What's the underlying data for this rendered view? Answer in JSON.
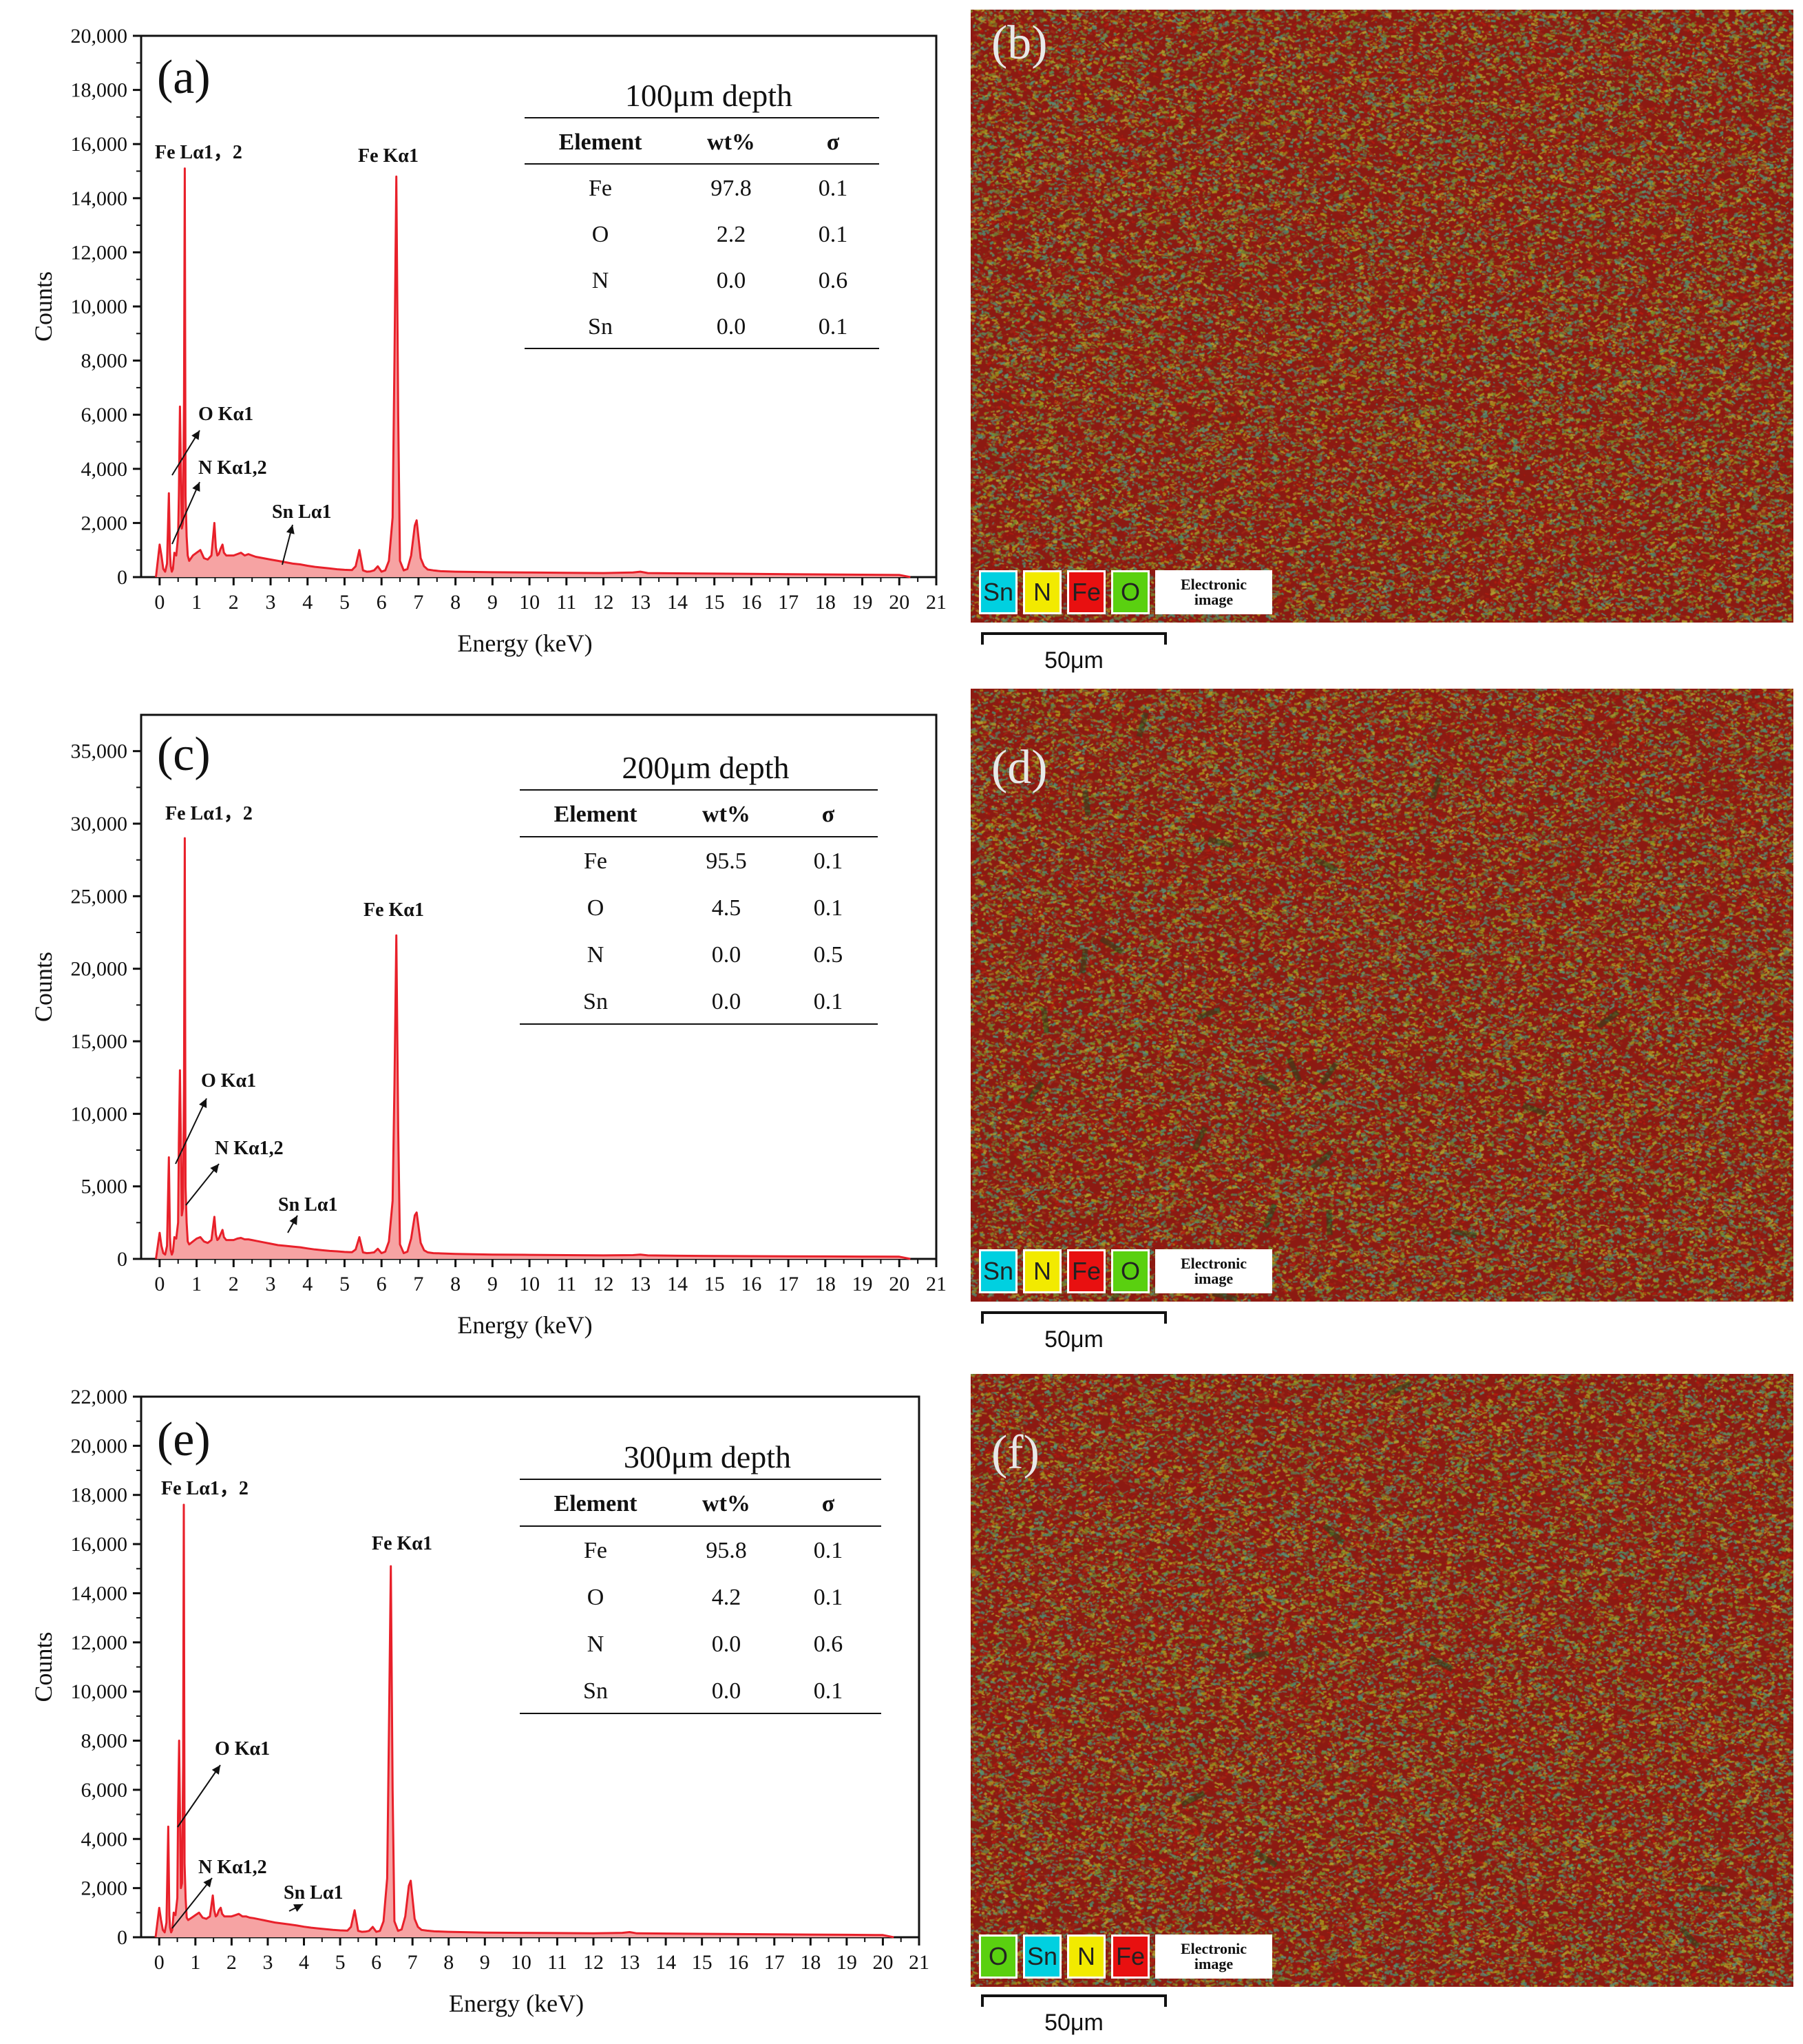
{
  "chart_data": [
    {
      "panel": "(a)",
      "type": "area",
      "xlabel": "Energy (keV)",
      "ylabel": "Counts",
      "xlim": [
        -0.5,
        21
      ],
      "ylim": [
        0,
        20000
      ],
      "xticks": [
        0,
        1,
        2,
        3,
        4,
        5,
        6,
        7,
        8,
        9,
        10,
        11,
        12,
        13,
        14,
        15,
        16,
        17,
        18,
        19,
        20,
        21
      ],
      "yticks": [
        0,
        2000,
        4000,
        6000,
        8000,
        10000,
        12000,
        14000,
        16000,
        18000,
        20000
      ],
      "ytick_labels": [
        "0",
        "2,000",
        "4,000",
        "6,000",
        "8,000",
        "10,000",
        "12,000",
        "14,000",
        "16,000",
        "18,000",
        "20,000"
      ],
      "series": [
        {
          "x": [
            -0.1,
            0.0,
            0.05,
            0.1,
            0.15,
            0.2,
            0.25,
            0.28,
            0.3,
            0.33,
            0.36,
            0.4,
            0.45,
            0.5,
            0.52,
            0.55,
            0.6,
            0.63,
            0.66,
            0.68,
            0.7,
            0.73,
            0.76,
            0.8,
            0.9,
            1.0,
            1.1,
            1.2,
            1.3,
            1.4,
            1.48,
            1.52,
            1.56,
            1.6,
            1.65,
            1.7,
            1.74,
            1.8,
            1.9,
            2.0,
            2.1,
            2.2,
            2.3,
            2.4,
            2.5,
            2.6,
            2.8,
            3.0,
            3.2,
            3.4,
            3.6,
            3.8,
            4.0,
            4.2,
            4.4,
            4.6,
            4.8,
            5.0,
            5.2,
            5.3,
            5.4,
            5.5,
            5.6,
            5.7,
            5.8,
            5.9,
            6.0,
            6.1,
            6.2,
            6.3,
            6.35,
            6.4,
            6.45,
            6.5,
            6.6,
            6.7,
            6.8,
            6.9,
            6.95,
            7.06,
            7.15,
            7.25,
            7.4,
            7.6,
            8.0,
            9.0,
            10.0,
            11.0,
            12.0,
            12.8,
            13.0,
            13.2,
            14.0,
            15.0,
            16.0,
            17.0,
            18.0,
            19.0,
            20.0,
            20.3
          ],
          "y": [
            0,
            1200,
            800,
            300,
            200,
            500,
            3100,
            900,
            400,
            200,
            300,
            900,
            800,
            1500,
            3000,
            6300,
            1800,
            2000,
            6500,
            15100,
            3000,
            1500,
            800,
            600,
            800,
            900,
            1000,
            700,
            650,
            800,
            2000,
            1100,
            800,
            850,
            1050,
            1200,
            900,
            800,
            800,
            800,
            850,
            900,
            800,
            850,
            800,
            750,
            700,
            650,
            600,
            550,
            500,
            470,
            420,
            380,
            350,
            320,
            290,
            270,
            260,
            400,
            1000,
            250,
            200,
            210,
            250,
            400,
            200,
            250,
            600,
            2200,
            8000,
            14800,
            6000,
            600,
            250,
            300,
            800,
            1900,
            2100,
            700,
            400,
            280,
            250,
            220,
            200,
            180,
            170,
            160,
            150,
            170,
            200,
            150,
            140,
            130,
            120,
            110,
            100,
            90,
            80,
            0
          ]
        }
      ],
      "annotations": [
        "Fe Lα1，2",
        "Fe Kα1",
        "O Kα1",
        "N Kα1,2",
        "Sn Lα1"
      ],
      "table": {
        "title": "100μm depth",
        "columns": [
          "Element",
          "wt%",
          "σ"
        ],
        "rows": [
          [
            "Fe",
            "97.8",
            "0.1"
          ],
          [
            "O",
            "2.2",
            "0.1"
          ],
          [
            "N",
            "0.0",
            "0.6"
          ],
          [
            "Sn",
            "0.0",
            "0.1"
          ]
        ]
      }
    },
    {
      "panel": "(c)",
      "type": "area",
      "xlabel": "Energy (keV)",
      "ylabel": "Counts",
      "xlim": [
        -0.5,
        21
      ],
      "ylim": [
        0,
        37500
      ],
      "xticks": [
        0,
        1,
        2,
        3,
        4,
        5,
        6,
        7,
        8,
        9,
        10,
        11,
        12,
        13,
        14,
        15,
        16,
        17,
        18,
        19,
        20,
        21
      ],
      "yticks": [
        0,
        5000,
        10000,
        15000,
        20000,
        25000,
        30000,
        35000
      ],
      "ytick_labels": [
        "0",
        "5,000",
        "10,000",
        "15,000",
        "20,000",
        "25,000",
        "30,000",
        "35,000"
      ],
      "series": [
        {
          "x": [
            -0.1,
            0.0,
            0.05,
            0.1,
            0.15,
            0.2,
            0.25,
            0.28,
            0.3,
            0.33,
            0.36,
            0.4,
            0.45,
            0.5,
            0.52,
            0.55,
            0.6,
            0.63,
            0.66,
            0.68,
            0.7,
            0.73,
            0.76,
            0.8,
            0.9,
            1.0,
            1.1,
            1.2,
            1.3,
            1.4,
            1.48,
            1.52,
            1.56,
            1.6,
            1.65,
            1.7,
            1.74,
            1.8,
            1.9,
            2.0,
            2.1,
            2.2,
            2.3,
            2.4,
            2.5,
            2.6,
            2.8,
            3.0,
            3.2,
            3.4,
            3.6,
            3.8,
            4.0,
            4.2,
            4.4,
            4.6,
            4.8,
            5.0,
            5.2,
            5.3,
            5.4,
            5.5,
            5.6,
            5.7,
            5.8,
            5.9,
            6.0,
            6.1,
            6.2,
            6.3,
            6.35,
            6.4,
            6.45,
            6.5,
            6.6,
            6.7,
            6.8,
            6.9,
            6.95,
            7.06,
            7.15,
            7.25,
            7.4,
            7.6,
            8.0,
            9.0,
            10.0,
            11.0,
            12.0,
            12.8,
            13.0,
            13.2,
            14.0,
            15.0,
            16.0,
            17.0,
            18.0,
            19.0,
            20.0,
            20.3
          ],
          "y": [
            0,
            1800,
            900,
            400,
            300,
            900,
            7000,
            1500,
            600,
            300,
            500,
            1500,
            1400,
            2500,
            8000,
            13000,
            3000,
            3500,
            12000,
            29000,
            5000,
            2500,
            1200,
            1000,
            1200,
            1400,
            1500,
            1200,
            1100,
            1300,
            2900,
            1700,
            1300,
            1400,
            1700,
            2000,
            1500,
            1300,
            1300,
            1300,
            1400,
            1450,
            1350,
            1350,
            1300,
            1250,
            1150,
            1050,
            950,
            900,
            850,
            800,
            720,
            650,
            600,
            550,
            520,
            480,
            460,
            650,
            1500,
            450,
            400,
            420,
            450,
            700,
            400,
            500,
            1200,
            4000,
            12000,
            22300,
            9000,
            1000,
            400,
            500,
            1400,
            3000,
            3200,
            1100,
            600,
            450,
            400,
            380,
            340,
            300,
            280,
            260,
            240,
            260,
            300,
            240,
            220,
            200,
            190,
            180,
            170,
            160,
            150,
            0
          ]
        }
      ],
      "annotations": [
        "Fe Lα1，2",
        "Fe Kα1",
        "O Kα1",
        "N Kα1,2",
        "Sn Lα1"
      ],
      "table": {
        "title": "200μm depth",
        "columns": [
          "Element",
          "wt%",
          "σ"
        ],
        "rows": [
          [
            "Fe",
            "95.5",
            "0.1"
          ],
          [
            "O",
            "4.5",
            "0.1"
          ],
          [
            "N",
            "0.0",
            "0.5"
          ],
          [
            "Sn",
            "0.0",
            "0.1"
          ]
        ]
      }
    },
    {
      "panel": "(e)",
      "type": "area",
      "xlabel": "Energy (keV)",
      "ylabel": "Counts",
      "xlim": [
        -0.5,
        21
      ],
      "ylim": [
        0,
        22000
      ],
      "xticks": [
        0,
        1,
        2,
        3,
        4,
        5,
        6,
        7,
        8,
        9,
        10,
        11,
        12,
        13,
        14,
        15,
        16,
        17,
        18,
        19,
        20,
        21
      ],
      "yticks": [
        0,
        2000,
        4000,
        6000,
        8000,
        10000,
        12000,
        14000,
        16000,
        18000,
        20000,
        22000
      ],
      "ytick_labels": [
        "0",
        "2,000",
        "4,000",
        "6,000",
        "8,000",
        "10,000",
        "12,000",
        "14,000",
        "16,000",
        "18,000",
        "20,000",
        "22,000"
      ],
      "series": [
        {
          "x": [
            -0.1,
            0.0,
            0.05,
            0.1,
            0.15,
            0.2,
            0.25,
            0.28,
            0.3,
            0.33,
            0.36,
            0.4,
            0.45,
            0.5,
            0.52,
            0.55,
            0.6,
            0.63,
            0.66,
            0.68,
            0.7,
            0.73,
            0.76,
            0.8,
            0.9,
            1.0,
            1.1,
            1.2,
            1.3,
            1.4,
            1.48,
            1.52,
            1.56,
            1.6,
            1.65,
            1.7,
            1.74,
            1.8,
            1.9,
            2.0,
            2.1,
            2.2,
            2.3,
            2.4,
            2.5,
            2.6,
            2.8,
            3.0,
            3.2,
            3.4,
            3.6,
            3.8,
            4.0,
            4.2,
            4.4,
            4.6,
            4.8,
            5.0,
            5.2,
            5.3,
            5.4,
            5.5,
            5.6,
            5.7,
            5.8,
            5.9,
            6.0,
            6.1,
            6.2,
            6.3,
            6.35,
            6.4,
            6.45,
            6.5,
            6.6,
            6.7,
            6.8,
            6.9,
            6.95,
            7.06,
            7.15,
            7.25,
            7.4,
            7.6,
            8.0,
            9.0,
            10.0,
            11.0,
            12.0,
            12.8,
            13.0,
            13.2,
            14.0,
            15.0,
            16.0,
            17.0,
            18.0,
            19.0,
            20.0,
            20.3
          ],
          "y": [
            0,
            1200,
            700,
            300,
            200,
            600,
            4500,
            900,
            400,
            200,
            300,
            1000,
            900,
            1600,
            5000,
            8000,
            2000,
            2200,
            7000,
            17600,
            3000,
            1600,
            800,
            700,
            800,
            900,
            1000,
            800,
            750,
            850,
            1700,
            1100,
            850,
            900,
            1100,
            1200,
            950,
            850,
            850,
            850,
            900,
            950,
            850,
            850,
            800,
            780,
            720,
            660,
            600,
            560,
            520,
            480,
            430,
            390,
            360,
            330,
            300,
            280,
            270,
            420,
            1100,
            260,
            220,
            230,
            260,
            420,
            220,
            260,
            650,
            2400,
            8500,
            15100,
            6000,
            650,
            260,
            320,
            850,
            2100,
            2300,
            750,
            420,
            300,
            270,
            240,
            220,
            190,
            180,
            170,
            160,
            180,
            210,
            160,
            150,
            140,
            130,
            120,
            110,
            100,
            90,
            0
          ]
        }
      ],
      "annotations": [
        "Fe Lα1，2",
        "Fe Kα1",
        "O Kα1",
        "N Kα1,2",
        "Sn Lα1"
      ],
      "table": {
        "title": "300μm depth",
        "columns": [
          "Element",
          "wt%",
          "σ"
        ],
        "rows": [
          [
            "Fe",
            "95.8",
            "0.1"
          ],
          [
            "O",
            "4.2",
            "0.1"
          ],
          [
            "N",
            "0.0",
            "0.6"
          ],
          [
            "Sn",
            "0.0",
            "0.1"
          ]
        ]
      }
    }
  ],
  "maps": [
    {
      "panel": "(b)",
      "legend": [
        {
          "label": "Sn",
          "color": "#00d0e0"
        },
        {
          "label": "N",
          "color": "#f2ea00"
        },
        {
          "label": "Fe",
          "color": "#e81010"
        },
        {
          "label": "O",
          "color": "#5ad010"
        }
      ],
      "legend_image_label": [
        "Electronic",
        "image"
      ],
      "scale_label": "50μm"
    },
    {
      "panel": "(d)",
      "legend": [
        {
          "label": "Sn",
          "color": "#00d0e0"
        },
        {
          "label": "N",
          "color": "#f2ea00"
        },
        {
          "label": "Fe",
          "color": "#e81010"
        },
        {
          "label": "O",
          "color": "#5ad010"
        }
      ],
      "legend_image_label": [
        "Electronic",
        "image"
      ],
      "scale_label": "50μm"
    },
    {
      "panel": "(f)",
      "legend": [
        {
          "label": "O",
          "color": "#5ad010"
        },
        {
          "label": "Sn",
          "color": "#00d0e0"
        },
        {
          "label": "N",
          "color": "#f2ea00"
        },
        {
          "label": "Fe",
          "color": "#e81010"
        }
      ],
      "legend_image_label": [
        "Electronic",
        "image"
      ],
      "scale_label": "50μm"
    }
  ],
  "colors": {
    "spectrum_line": "#e8202a",
    "spectrum_fill": "#f6a3a3",
    "map_base": "#8c1a12"
  }
}
